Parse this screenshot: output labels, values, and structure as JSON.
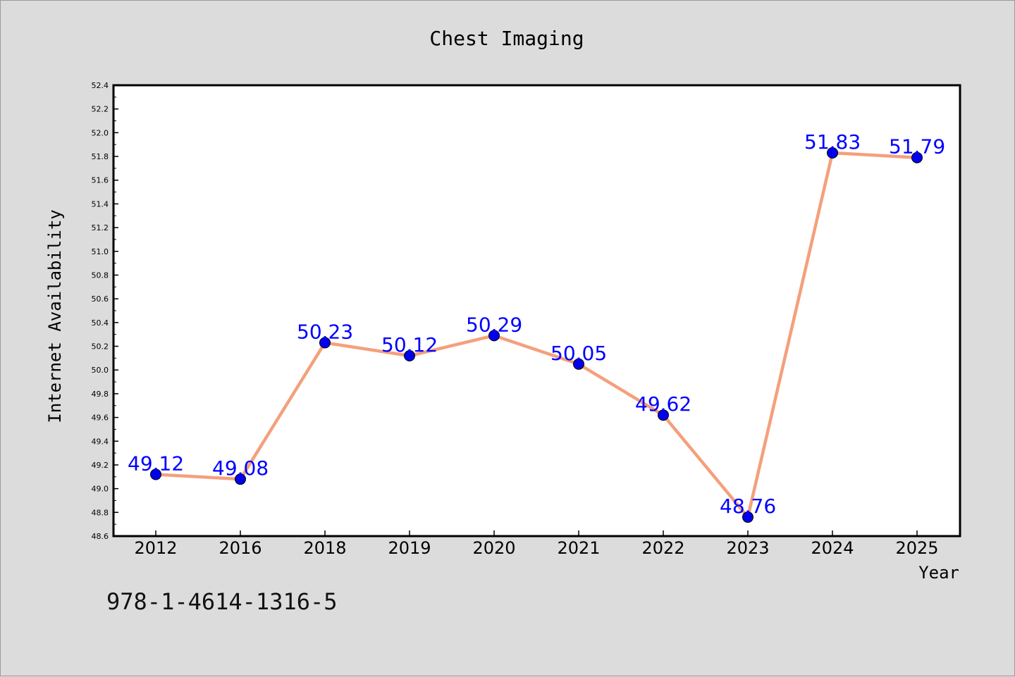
{
  "chart_data": {
    "type": "line",
    "title": "Chest Imaging",
    "xlabel": "Year",
    "ylabel": "Internet Availability",
    "categories": [
      "2012",
      "2016",
      "2018",
      "2019",
      "2020",
      "2021",
      "2022",
      "2023",
      "2024",
      "2025"
    ],
    "series": [
      {
        "values": [
          49.12,
          49.08,
          50.23,
          50.12,
          50.29,
          50.05,
          49.62,
          48.76,
          51.83,
          51.79
        ],
        "data_labels": [
          "49.12",
          "49.08",
          "50.23",
          "50.12",
          "50.29",
          "50.05",
          "49.62",
          "48.76",
          "51.83",
          "51.79"
        ],
        "line_color": "#f4a07c",
        "marker_color": "#0000ee",
        "label_color": "#0000ff"
      }
    ],
    "ylim": [
      48.6,
      52.4
    ],
    "y_ticks": [
      "48.6",
      "48.8",
      "49.0",
      "49.2",
      "49.4",
      "49.6",
      "49.8",
      "50.0",
      "50.2",
      "50.4",
      "50.6",
      "50.8",
      "51.0",
      "51.2",
      "51.4",
      "51.6",
      "51.8",
      "52.0",
      "52.2",
      "52.4"
    ],
    "grid": false,
    "legend": "none"
  },
  "footer": {
    "isbn": "978-1-4614-1316-5"
  },
  "colors": {
    "background": "#dcdcdc",
    "plot_background": "#ffffff",
    "axis": "#000000"
  }
}
